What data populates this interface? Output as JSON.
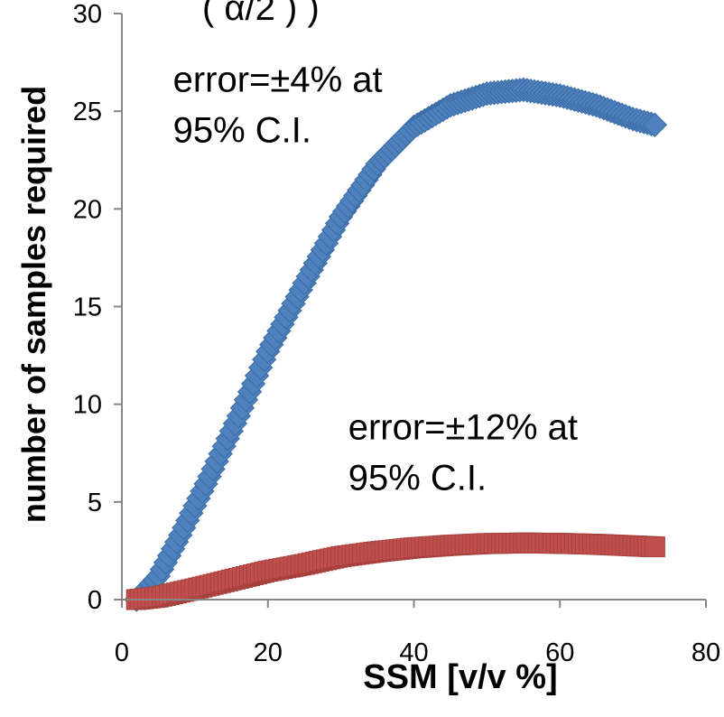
{
  "chart_data": {
    "type": "scatter",
    "title": "",
    "title_fragment": "( α/2 ) )",
    "xlabel": "SSM [v/v %]",
    "ylabel": "number of samples required",
    "xlim": [
      0,
      80
    ],
    "ylim": [
      0,
      30
    ],
    "x_ticks": [
      "0",
      "20",
      "40",
      "60",
      "80"
    ],
    "y_ticks": [
      "0",
      "5",
      "10",
      "15",
      "20",
      "25",
      "30"
    ],
    "grid": false,
    "legend": "none",
    "annotations": [
      {
        "lines": [
          "error=±4% at",
          "95% C.I."
        ],
        "at": [
          7,
          26
        ]
      },
      {
        "lines": [
          "error=±12%  at",
          "95% C.I."
        ],
        "at": [
          31,
          8.2
        ]
      }
    ],
    "series": [
      {
        "marker": "diamond",
        "color": "#4F81BD",
        "x_range": [
          2,
          73
        ],
        "x_step": 0.5,
        "points": [
          [
            2,
            0.0
          ],
          [
            5,
            1.2
          ],
          [
            8,
            3.3
          ],
          [
            12,
            6.3
          ],
          [
            16,
            9.4
          ],
          [
            20,
            12.7
          ],
          [
            25,
            16.2
          ],
          [
            30,
            19.6
          ],
          [
            35,
            22.3
          ],
          [
            40,
            24.2
          ],
          [
            45,
            25.3
          ],
          [
            50,
            25.9
          ],
          [
            55,
            26.1
          ],
          [
            60,
            25.8
          ],
          [
            65,
            25.3
          ],
          [
            70,
            24.6
          ],
          [
            73,
            24.3
          ]
        ]
      },
      {
        "marker": "square",
        "color": "#C0504D",
        "x_range": [
          2,
          73
        ],
        "x_step": 0.5,
        "points": [
          [
            2,
            0.0
          ],
          [
            5,
            0.13
          ],
          [
            10,
            0.55
          ],
          [
            15,
            1.0
          ],
          [
            20,
            1.45
          ],
          [
            25,
            1.8
          ],
          [
            30,
            2.2
          ],
          [
            35,
            2.45
          ],
          [
            40,
            2.65
          ],
          [
            45,
            2.78
          ],
          [
            50,
            2.87
          ],
          [
            55,
            2.9
          ],
          [
            60,
            2.88
          ],
          [
            65,
            2.83
          ],
          [
            70,
            2.75
          ],
          [
            73,
            2.7
          ]
        ]
      }
    ]
  }
}
